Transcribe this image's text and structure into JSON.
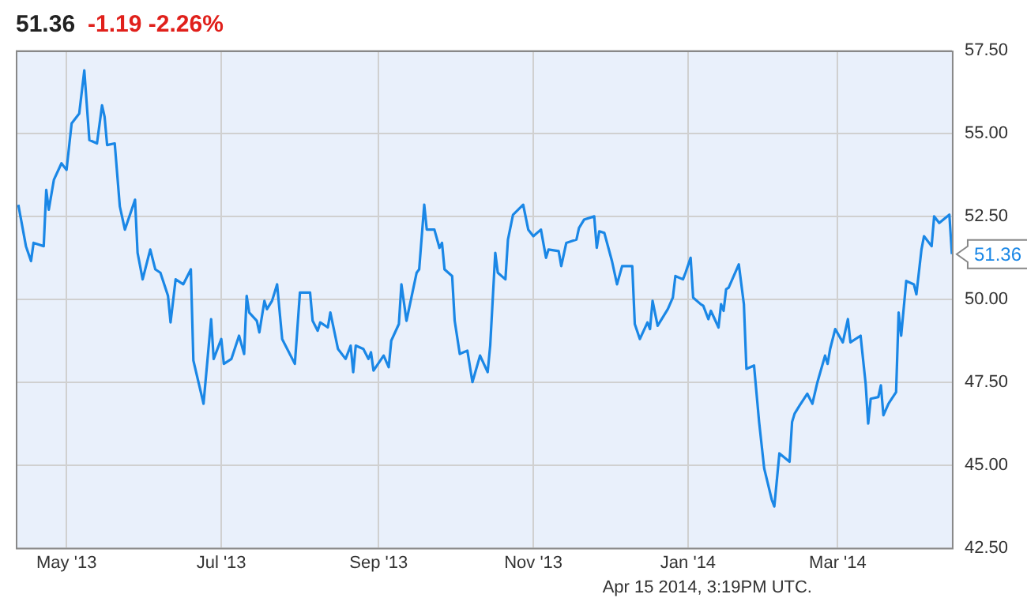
{
  "chart_data": {
    "type": "line",
    "title": "51.36",
    "subtitle": "-1.19  -2.26%",
    "color": "#1a87e6",
    "marker": "none",
    "line_style": "solid",
    "grid": true,
    "legend": false,
    "x": [
      "2013-04-12",
      "2013-04-15",
      "2013-04-17",
      "2013-04-18",
      "2013-04-22",
      "2013-04-23",
      "2013-04-24",
      "2013-04-26",
      "2013-04-29",
      "2013-05-01",
      "2013-05-03",
      "2013-05-06",
      "2013-05-08",
      "2013-05-10",
      "2013-05-13",
      "2013-05-15",
      "2013-05-16",
      "2013-05-17",
      "2013-05-20",
      "2013-05-22",
      "2013-05-24",
      "2013-05-28",
      "2013-05-29",
      "2013-05-31",
      "2013-06-03",
      "2013-06-05",
      "2013-06-07",
      "2013-06-10",
      "2013-06-11",
      "2013-06-13",
      "2013-06-16",
      "2013-06-19",
      "2013-06-20",
      "2013-06-24",
      "2013-06-27",
      "2013-06-28",
      "2013-07-01",
      "2013-07-02",
      "2013-07-05",
      "2013-07-08",
      "2013-07-10",
      "2013-07-11",
      "2013-07-12",
      "2013-07-15",
      "2013-07-16",
      "2013-07-18",
      "2013-07-19",
      "2013-07-21",
      "2013-07-23",
      "2013-07-25",
      "2013-07-30",
      "2013-08-01",
      "2013-08-05",
      "2013-08-06",
      "2013-08-08",
      "2013-08-09",
      "2013-08-12",
      "2013-08-13",
      "2013-08-16",
      "2013-08-19",
      "2013-08-21",
      "2013-08-22",
      "2013-08-23",
      "2013-08-26",
      "2013-08-28",
      "2013-08-29",
      "2013-08-30",
      "2013-09-03",
      "2013-09-05",
      "2013-09-06",
      "2013-09-09",
      "2013-09-10",
      "2013-09-12",
      "2013-09-16",
      "2013-09-17",
      "2013-09-19",
      "2013-09-20",
      "2013-09-23",
      "2013-09-25",
      "2013-09-26",
      "2013-09-27",
      "2013-09-30",
      "2013-10-01",
      "2013-10-03",
      "2013-10-06",
      "2013-10-08",
      "2013-10-11",
      "2013-10-14",
      "2013-10-15",
      "2013-10-17",
      "2013-10-18",
      "2013-10-21",
      "2013-10-22",
      "2013-10-24",
      "2013-10-28",
      "2013-10-30",
      "2013-11-01",
      "2013-11-04",
      "2013-11-06",
      "2013-11-07",
      "2013-11-11",
      "2013-11-12",
      "2013-11-14",
      "2013-11-18",
      "2013-11-19",
      "2013-11-21",
      "2013-11-25",
      "2013-11-26",
      "2013-11-27",
      "2013-11-29",
      "2013-12-02",
      "2013-12-04",
      "2013-12-06",
      "2013-12-10",
      "2013-12-11",
      "2013-12-13",
      "2013-12-16",
      "2013-12-17",
      "2013-12-18",
      "2013-12-20",
      "2013-12-24",
      "2013-12-26",
      "2013-12-27",
      "2013-12-30",
      "2013-12-31",
      "2014-01-02",
      "2014-01-03",
      "2014-01-06",
      "2014-01-07",
      "2014-01-09",
      "2014-01-10",
      "2014-01-13",
      "2014-01-14",
      "2014-01-15",
      "2014-01-16",
      "2014-01-17",
      "2014-01-21",
      "2014-01-23",
      "2014-01-24",
      "2014-01-27",
      "2014-01-29",
      "2014-01-31",
      "2014-02-03",
      "2014-02-04",
      "2014-02-06",
      "2014-02-10",
      "2014-02-11",
      "2014-02-12",
      "2014-02-14",
      "2014-02-17",
      "2014-02-19",
      "2014-02-21",
      "2014-02-24",
      "2014-02-25",
      "2014-02-26",
      "2014-02-28",
      "2014-03-03",
      "2014-03-04",
      "2014-03-05",
      "2014-03-06",
      "2014-03-10",
      "2014-03-12",
      "2014-03-13",
      "2014-03-14",
      "2014-03-17",
      "2014-03-18",
      "2014-03-19",
      "2014-03-21",
      "2014-03-24",
      "2014-03-25",
      "2014-03-26",
      "2014-03-28",
      "2014-03-31",
      "2014-04-01",
      "2014-04-03",
      "2014-04-04",
      "2014-04-07",
      "2014-04-08",
      "2014-04-10",
      "2014-04-14",
      "2014-04-15"
    ],
    "values": [
      52.85,
      51.6,
      51.15,
      51.7,
      51.6,
      53.3,
      52.7,
      53.6,
      54.1,
      53.9,
      55.3,
      55.6,
      56.9,
      54.8,
      54.7,
      55.85,
      55.5,
      54.65,
      54.7,
      52.8,
      52.1,
      53.0,
      51.4,
      50.6,
      51.5,
      50.9,
      50.8,
      50.1,
      49.3,
      50.6,
      50.45,
      50.9,
      48.15,
      46.85,
      49.4,
      48.2,
      48.8,
      48.05,
      48.2,
      48.9,
      48.35,
      50.1,
      49.6,
      49.35,
      49.0,
      49.95,
      49.7,
      49.95,
      50.45,
      48.8,
      48.05,
      50.2,
      50.2,
      49.35,
      49.05,
      49.3,
      49.15,
      49.6,
      48.5,
      48.2,
      48.6,
      47.8,
      48.6,
      48.5,
      48.2,
      48.4,
      47.85,
      48.3,
      47.95,
      48.75,
      49.25,
      50.45,
      49.35,
      50.8,
      50.9,
      52.85,
      52.1,
      52.1,
      51.55,
      51.7,
      50.9,
      50.7,
      49.35,
      48.35,
      48.45,
      47.5,
      48.3,
      47.8,
      48.6,
      51.4,
      50.8,
      50.6,
      51.8,
      52.55,
      52.85,
      52.1,
      51.9,
      52.1,
      51.25,
      51.5,
      51.45,
      51.0,
      51.7,
      51.8,
      52.15,
      52.4,
      52.5,
      51.55,
      52.05,
      52.0,
      51.15,
      50.45,
      51.0,
      51.0,
      49.25,
      48.8,
      49.3,
      49.1,
      49.95,
      49.2,
      49.7,
      50.05,
      50.7,
      50.6,
      50.8,
      51.25,
      50.05,
      49.85,
      49.8,
      49.4,
      49.65,
      49.15,
      49.85,
      49.65,
      50.3,
      50.35,
      51.05,
      49.85,
      47.9,
      48.0,
      46.3,
      44.9,
      43.95,
      43.75,
      45.35,
      45.1,
      46.3,
      46.55,
      46.8,
      47.15,
      46.85,
      47.5,
      48.3,
      48.05,
      48.5,
      49.1,
      48.7,
      49.05,
      49.4,
      48.7,
      48.9,
      47.45,
      46.25,
      47.0,
      47.05,
      47.4,
      46.5,
      46.85,
      47.2,
      49.6,
      48.9,
      50.55,
      50.45,
      50.15,
      51.5,
      51.9,
      51.6,
      52.5,
      52.3,
      52.55,
      51.36
    ],
    "xlim": [
      "2013-04-11",
      "2014-04-15"
    ],
    "xticks": [
      {
        "value": "2013-05-01",
        "label": "May '13"
      },
      {
        "value": "2013-07-01",
        "label": "Jul '13"
      },
      {
        "value": "2013-09-01",
        "label": "Sep '13"
      },
      {
        "value": "2013-11-01",
        "label": "Nov '13"
      },
      {
        "value": "2014-01-01",
        "label": "Jan '14"
      },
      {
        "value": "2014-03-01",
        "label": "Mar '14"
      }
    ],
    "ylim": [
      42.5,
      57.5
    ],
    "yticks": [
      {
        "value": 42.5,
        "label": "42.50"
      },
      {
        "value": 45,
        "label": "45.00"
      },
      {
        "value": 47.5,
        "label": "47.50"
      },
      {
        "value": 50,
        "label": "50.00"
      },
      {
        "value": 52.5,
        "label": "52.50"
      },
      {
        "value": 55,
        "label": "55.00"
      },
      {
        "value": 57.5,
        "label": "57.50"
      }
    ],
    "annotations": [
      {
        "text": "51.36",
        "x": "2014-04-15",
        "y": 51.36
      },
      "Apr 15 2014, 3:19PM UTC."
    ]
  }
}
